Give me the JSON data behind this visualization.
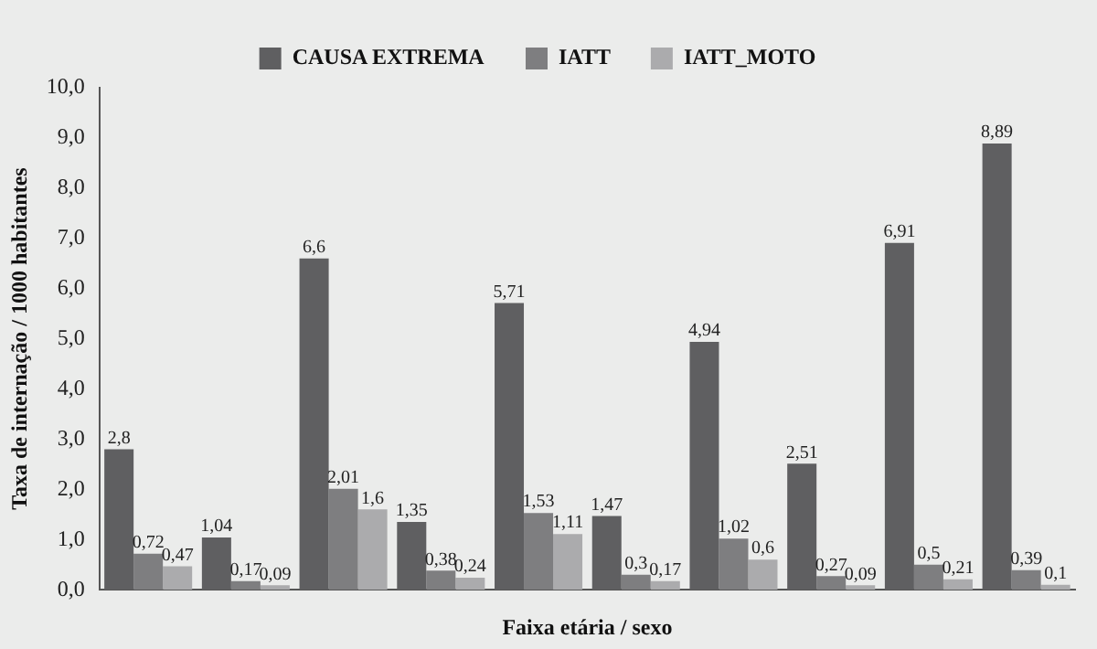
{
  "chart_data": {
    "type": "bar",
    "xlabel": "Faixa etária / sexo",
    "ylabel": "Taxa de internação / 1000 habitantes",
    "categories": [
      null,
      null,
      null,
      null,
      null,
      null,
      null,
      null,
      null,
      null
    ],
    "series": [
      {
        "name": "CAUSA EXTREMA",
        "color": "#5f5f61",
        "values": [
          2.8,
          1.04,
          6.6,
          1.35,
          5.71,
          1.47,
          4.94,
          2.51,
          6.91,
          8.89
        ],
        "value_labels": [
          "2,8",
          "1,04",
          "6,6",
          "1,35",
          "5,71",
          "1,47",
          "4,94",
          "2,51",
          "6,91",
          "8,89"
        ]
      },
      {
        "name": "IATT",
        "color": "#7e7e80",
        "values": [
          0.72,
          0.17,
          2.01,
          0.38,
          1.53,
          0.3,
          1.02,
          0.27,
          0.5,
          0.39
        ],
        "value_labels": [
          "0,72",
          "0,17",
          "2,01",
          "0,38",
          "1,53",
          "0,3",
          "1,02",
          "0,27",
          "0,5",
          "0,39"
        ]
      },
      {
        "name": "IATT_MOTO",
        "color": "#ababad",
        "values": [
          0.47,
          0.09,
          1.6,
          0.24,
          1.11,
          0.17,
          0.6,
          0.09,
          0.21,
          0.1
        ],
        "value_labels": [
          "0,47",
          "0,09",
          "1,6",
          "0,24",
          "1,11",
          "0,17",
          "0,6",
          "0,09",
          "0,21",
          "0,1"
        ]
      }
    ],
    "ylim": [
      0,
      10
    ],
    "yticks": [
      {
        "value": 0,
        "label": "0,0"
      },
      {
        "value": 1,
        "label": "1,0"
      },
      {
        "value": 2,
        "label": "2,0"
      },
      {
        "value": 3,
        "label": "3,0"
      },
      {
        "value": 4,
        "label": "4,0"
      },
      {
        "value": 5,
        "label": "5,0"
      },
      {
        "value": 6,
        "label": "6,0"
      },
      {
        "value": 7,
        "label": "7,0"
      },
      {
        "value": 8,
        "label": "8,0"
      },
      {
        "value": 9,
        "label": "9,0"
      },
      {
        "value": 10,
        "label": "10,0"
      }
    ],
    "grid": false,
    "legend": "top"
  }
}
